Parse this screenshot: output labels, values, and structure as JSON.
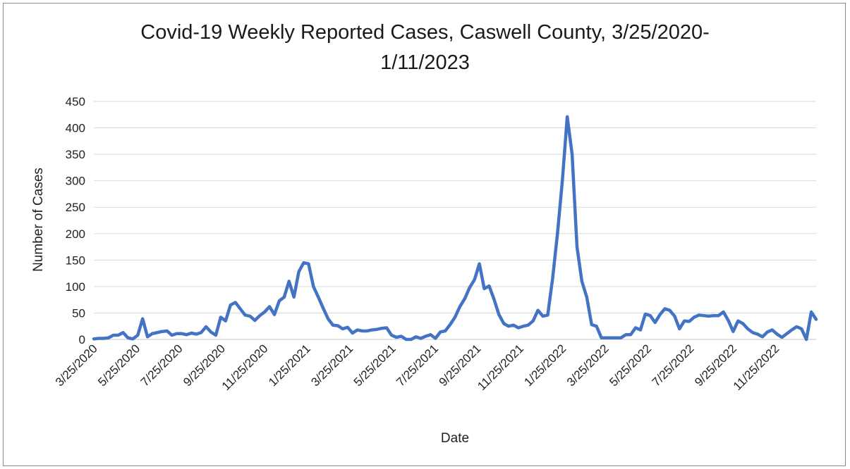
{
  "chart_data": {
    "type": "line",
    "title_line1": "Covid-19 Weekly Reported Cases, Caswell County, 3/25/2020-",
    "title_line2": "1/11/2023",
    "xlabel": "Date",
    "ylabel": "Number of Cases",
    "ylim": [
      0,
      450
    ],
    "yticks": [
      "0",
      "50",
      "100",
      "150",
      "200",
      "250",
      "300",
      "350",
      "400",
      "450"
    ],
    "xticks": [
      "3/25/2020",
      "5/25/2020",
      "7/25/2020",
      "9/25/2020",
      "11/25/2020",
      "1/25/2021",
      "3/25/2021",
      "5/25/2021",
      "7/25/2021",
      "9/25/2021",
      "11/25/2021",
      "1/25/2022",
      "3/25/2022",
      "5/25/2022",
      "7/25/2022",
      "9/25/2022",
      "11/25/2022"
    ],
    "grid": true,
    "legend": "none",
    "line_color": "#4472C4",
    "series": [
      {
        "values": [
          1,
          2,
          2,
          3,
          8,
          8,
          13,
          3,
          1,
          8,
          39,
          5,
          11,
          13,
          15,
          16,
          8,
          11,
          11,
          9,
          12,
          10,
          13,
          24,
          14,
          8,
          42,
          35,
          65,
          70,
          58,
          46,
          44,
          36,
          45,
          52,
          62,
          47,
          73,
          80,
          110,
          80,
          128,
          145,
          143,
          100,
          80,
          59,
          39,
          27,
          26,
          20,
          23,
          12,
          18,
          16,
          16,
          18,
          19,
          21,
          22,
          8,
          4,
          6,
          0,
          0,
          5,
          2,
          6,
          9,
          2,
          14,
          16,
          28,
          42,
          62,
          77,
          98,
          113,
          143,
          96,
          101,
          76,
          47,
          30,
          25,
          27,
          22,
          25,
          27,
          35,
          55,
          44,
          46,
          115,
          200,
          300,
          421,
          350,
          175,
          110,
          80,
          28,
          25,
          3,
          3,
          3,
          3,
          3,
          9,
          9,
          22,
          18,
          48,
          45,
          32,
          47,
          58,
          55,
          44,
          20,
          35,
          34,
          42,
          46,
          45,
          44,
          45,
          45,
          52,
          36,
          15,
          35,
          30,
          20,
          13,
          10,
          5,
          14,
          18,
          10,
          4,
          11,
          18,
          24,
          20,
          0,
          52,
          38
        ]
      }
    ]
  }
}
